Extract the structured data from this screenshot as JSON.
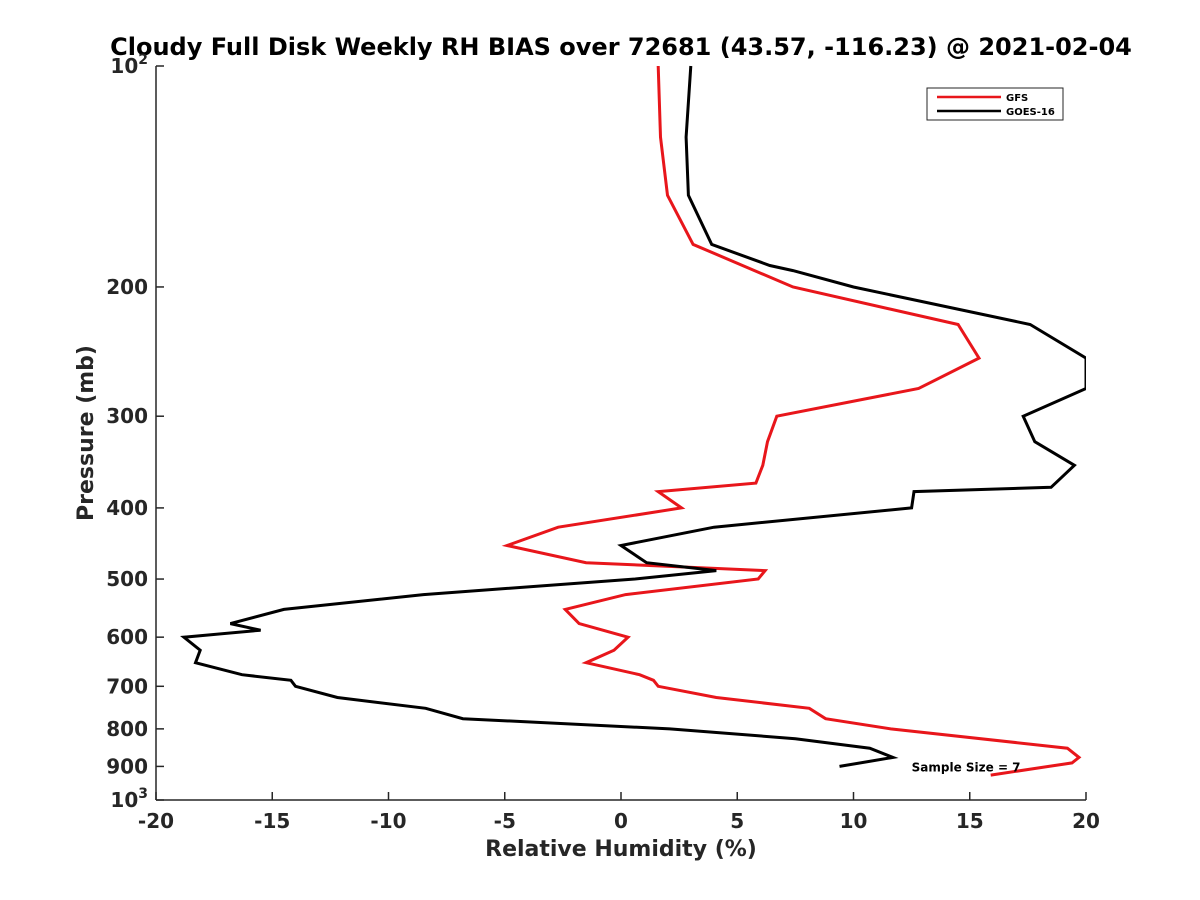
{
  "chart_data": {
    "type": "line",
    "title": "Cloudy Full Disk Weekly RH BIAS over 72681 (43.57, -116.23) @ 2021-02-04",
    "xlabel": "Relative Humidity (%)",
    "ylabel": "Pressure (mb)",
    "xlim": [
      -20,
      20
    ],
    "ylim": [
      1000,
      100
    ],
    "y_scale": "log",
    "y_reversed": true,
    "grid": false,
    "legend_position": "top-right",
    "x_ticks": [
      "-20",
      "-15",
      "-10",
      "-5",
      "0",
      "5",
      "10",
      "15",
      "20"
    ],
    "y_ticks": [
      {
        "value": 100,
        "base": "10",
        "exp": "2"
      },
      {
        "value": 200,
        "label": "200"
      },
      {
        "value": 300,
        "label": "300"
      },
      {
        "value": 400,
        "label": "400"
      },
      {
        "value": 500,
        "label": "500"
      },
      {
        "value": 600,
        "label": "600"
      },
      {
        "value": 700,
        "label": "700"
      },
      {
        "value": 800,
        "label": "800"
      },
      {
        "value": 900,
        "label": "900"
      },
      {
        "value": 1000,
        "base": "10",
        "exp": "3"
      }
    ],
    "series": [
      {
        "name": "GFS",
        "color": "#e8161b",
        "points": [
          [
            1.6,
            100
          ],
          [
            1.7,
            125
          ],
          [
            2.0,
            150
          ],
          [
            3.1,
            175
          ],
          [
            7.4,
            200
          ],
          [
            14.5,
            225
          ],
          [
            15.4,
            250
          ],
          [
            12.8,
            275
          ],
          [
            6.7,
            300
          ],
          [
            6.3,
            325
          ],
          [
            6.1,
            350
          ],
          [
            5.8,
            370
          ],
          [
            1.6,
            380
          ],
          [
            2.6,
            400
          ],
          [
            -2.7,
            425
          ],
          [
            -4.9,
            450
          ],
          [
            -1.5,
            475
          ],
          [
            6.2,
            487
          ],
          [
            5.9,
            500
          ],
          [
            0.2,
            525
          ],
          [
            -2.4,
            550
          ],
          [
            -1.8,
            575
          ],
          [
            0.3,
            600
          ],
          [
            -0.3,
            625
          ],
          [
            -1.5,
            650
          ],
          [
            0.8,
            675
          ],
          [
            1.4,
            687
          ],
          [
            1.6,
            700
          ],
          [
            4.1,
            725
          ],
          [
            8.1,
            750
          ],
          [
            8.8,
            775
          ],
          [
            11.6,
            800
          ],
          [
            19.2,
            850
          ],
          [
            19.7,
            875
          ],
          [
            19.4,
            890
          ],
          [
            18.4,
            900
          ],
          [
            15.9,
            925
          ]
        ]
      },
      {
        "name": "GOES-16",
        "color": "#000000",
        "points": [
          [
            3.0,
            100
          ],
          [
            2.8,
            125
          ],
          [
            2.9,
            150
          ],
          [
            3.9,
            175
          ],
          [
            6.4,
            187
          ],
          [
            7.4,
            190
          ],
          [
            10.0,
            200
          ],
          [
            17.6,
            225
          ],
          [
            20.0,
            250
          ],
          [
            20.0,
            275
          ],
          [
            17.3,
            300
          ],
          [
            17.8,
            325
          ],
          [
            19.5,
            350
          ],
          [
            18.5,
            375
          ],
          [
            12.6,
            380
          ],
          [
            12.5,
            400
          ],
          [
            4.0,
            425
          ],
          [
            0.0,
            450
          ],
          [
            1.1,
            475
          ],
          [
            4.1,
            487
          ],
          [
            0.6,
            500
          ],
          [
            -8.5,
            525
          ],
          [
            -14.5,
            550
          ],
          [
            -16.8,
            575
          ],
          [
            -15.5,
            587
          ],
          [
            -18.8,
            600
          ],
          [
            -18.1,
            625
          ],
          [
            -18.3,
            650
          ],
          [
            -16.3,
            675
          ],
          [
            -14.2,
            687
          ],
          [
            -14.0,
            700
          ],
          [
            -12.2,
            725
          ],
          [
            -8.4,
            750
          ],
          [
            -6.8,
            775
          ],
          [
            2.1,
            800
          ],
          [
            7.5,
            825
          ],
          [
            10.7,
            850
          ],
          [
            11.7,
            875
          ],
          [
            9.4,
            900
          ]
        ]
      }
    ],
    "annotations": [
      {
        "text": "Sample Size = 7",
        "x": 12.5,
        "y": 900
      }
    ]
  }
}
